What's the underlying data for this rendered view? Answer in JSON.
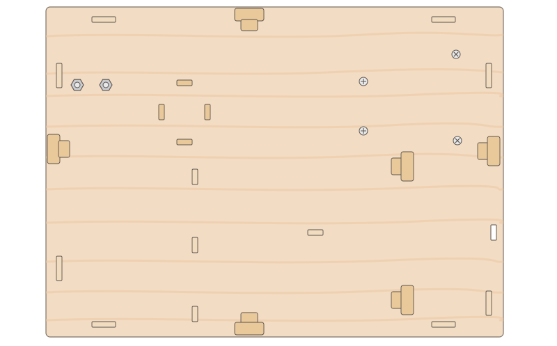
{
  "diagram": {
    "kind": "laser-cut wooden base plate, top view",
    "colors": {
      "page_background": "#ffffff",
      "plate_fill": "#f2dcc4",
      "plate_stroke": "#7d7268",
      "grain": "#ecc9a2",
      "tab_fill": "#f1dcc0",
      "peg_fill": "#e9c89a",
      "peg_dark": "#e4bc83",
      "nut_fill": "#c9cbcf",
      "screw_fill": "#e7e8ea",
      "outline": "#5b534c",
      "empty_slot_fill": "#ffffff"
    },
    "parts": {
      "edge_slots": 8,
      "center_tabs": 6,
      "vertical_slots": 3,
      "stepped_pegs_edge": 4,
      "stepped_pegs_inner": 2,
      "hex_nuts": 2,
      "cross_screws": 4,
      "empty_slots": 1
    }
  }
}
